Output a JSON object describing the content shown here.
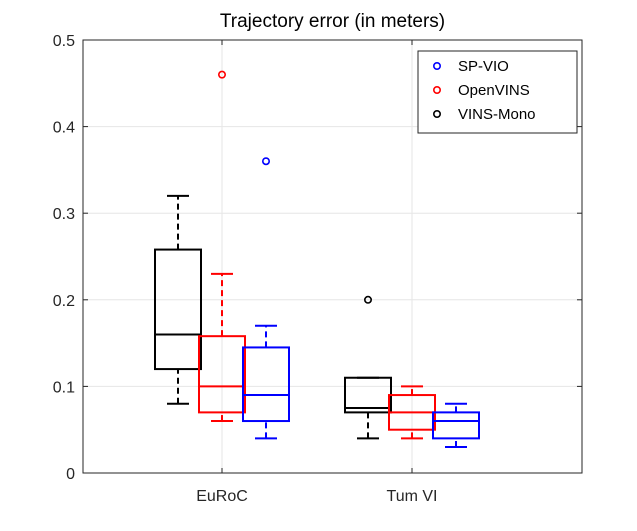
{
  "chart_data": {
    "type": "boxplot",
    "title": "Trajectory error (in meters)",
    "xlabel": "",
    "ylabel": "",
    "ylim": [
      0,
      0.5
    ],
    "yticks": [
      0,
      0.1,
      0.2,
      0.3,
      0.4,
      0.5
    ],
    "ytick_labels": [
      "0",
      "0.1",
      "0.2",
      "0.3",
      "0.4",
      "0.5"
    ],
    "grid": true,
    "legend_position": "top-right",
    "categories": [
      "EuRoC",
      "Tum VI"
    ],
    "series": [
      {
        "name": "SP-VIO",
        "color": "#0000ff",
        "boxes": [
          {
            "category": "EuRoC",
            "whisker_low": 0.04,
            "q1": 0.06,
            "median": 0.09,
            "q3": 0.145,
            "whisker_high": 0.17,
            "outliers": [
              0.36
            ]
          },
          {
            "category": "Tum VI",
            "whisker_low": 0.03,
            "q1": 0.04,
            "median": 0.06,
            "q3": 0.07,
            "whisker_high": 0.08,
            "outliers": []
          }
        ]
      },
      {
        "name": "OpenVINS",
        "color": "#ff0000",
        "boxes": [
          {
            "category": "EuRoC",
            "whisker_low": 0.06,
            "q1": 0.07,
            "median": 0.1,
            "q3": 0.158,
            "whisker_high": 0.23,
            "outliers": [
              0.46
            ]
          },
          {
            "category": "Tum VI",
            "whisker_low": 0.04,
            "q1": 0.05,
            "median": 0.07,
            "q3": 0.09,
            "whisker_high": 0.1,
            "outliers": []
          }
        ]
      },
      {
        "name": "VINS-Mono",
        "color": "#000000",
        "boxes": [
          {
            "category": "EuRoC",
            "whisker_low": 0.08,
            "q1": 0.12,
            "median": 0.16,
            "q3": 0.258,
            "whisker_high": 0.32,
            "outliers": []
          },
          {
            "category": "Tum VI",
            "whisker_low": 0.04,
            "q1": 0.07,
            "median": 0.075,
            "q3": 0.11,
            "whisker_high": 0.11,
            "outliers": [
              0.2
            ]
          }
        ]
      }
    ]
  }
}
